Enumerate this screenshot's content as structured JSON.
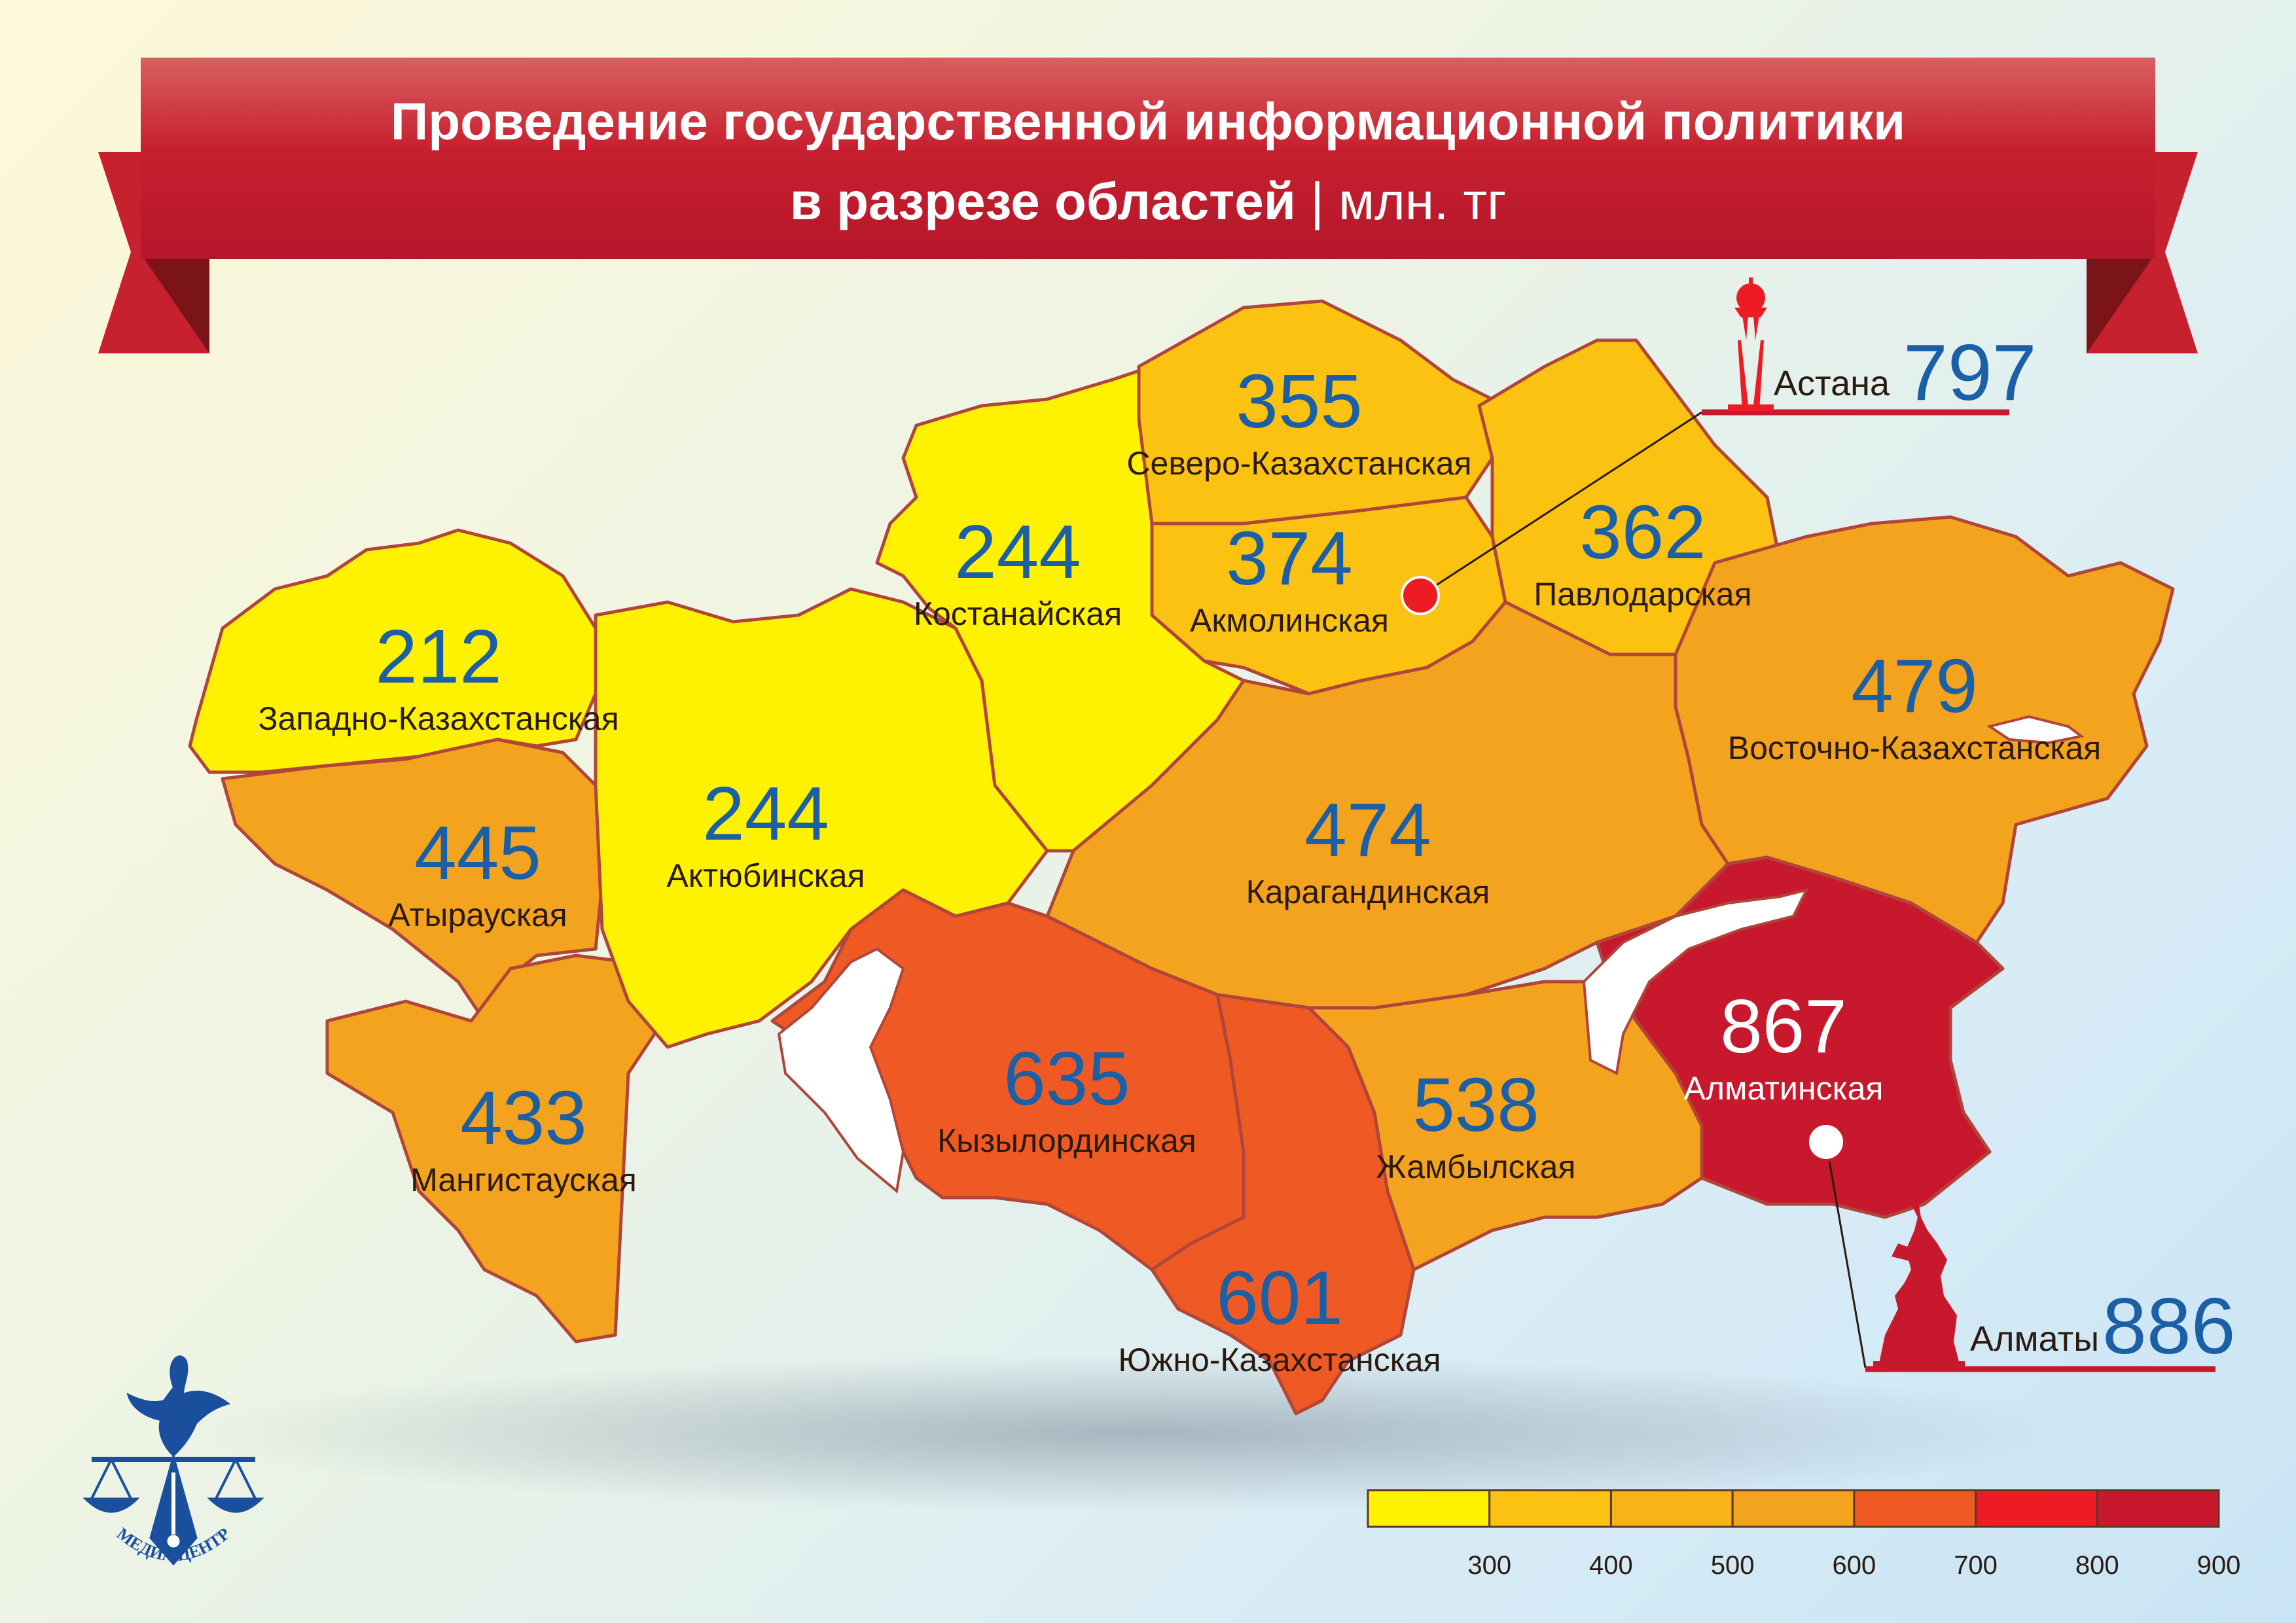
{
  "title": {
    "line1": "Проведение государственной информационной политики",
    "line2_main": "в разрезе областей",
    "line2_sep": " | ",
    "line2_unit": "млн. тг"
  },
  "regions": [
    {
      "name": "Западно-Казахстанская",
      "value": 212,
      "color": "#fff200"
    },
    {
      "name": "Атырауская",
      "value": 445,
      "color": "#f4a31f"
    },
    {
      "name": "Мангистауская",
      "value": 433,
      "color": "#f4a31f"
    },
    {
      "name": "Актюбинская",
      "value": 244,
      "color": "#fff200"
    },
    {
      "name": "Костанайская",
      "value": 244,
      "color": "#fff200"
    },
    {
      "name": "Северо-Казахстанская",
      "value": 355,
      "color": "#fcc212"
    },
    {
      "name": "Акмолинская",
      "value": 374,
      "color": "#fcc212"
    },
    {
      "name": "Павлодарская",
      "value": 362,
      "color": "#fcc212"
    },
    {
      "name": "Восточно-Казахстанская",
      "value": 479,
      "color": "#f4a31f"
    },
    {
      "name": "Карагандинская",
      "value": 474,
      "color": "#f4a31f"
    },
    {
      "name": "Кызылординская",
      "value": 635,
      "color": "#ef5a24"
    },
    {
      "name": "Южно-Казахстанская",
      "value": 601,
      "color": "#ef5a24"
    },
    {
      "name": "Жамбылская",
      "value": 538,
      "color": "#f4a31f"
    },
    {
      "name": "Алматинская",
      "value": 867,
      "color": "#c8182d"
    }
  ],
  "cities": [
    {
      "name": "Астана",
      "value": 797,
      "icon": "baiterek-tower-icon"
    },
    {
      "name": "Алматы",
      "value": 886,
      "icon": "golden-man-statue-icon"
    }
  ],
  "legend": {
    "ticks": [
      "300",
      "400",
      "500",
      "600",
      "700",
      "800",
      "900"
    ],
    "colors": [
      "#fff200",
      "#fcc212",
      "#f8b21a",
      "#f4a31f",
      "#ef5a24",
      "#ed1c24",
      "#c8182d"
    ]
  },
  "logo": {
    "text": "МЕДИА ЦЕНТР",
    "icon": "dove-scales-logo-icon"
  }
}
